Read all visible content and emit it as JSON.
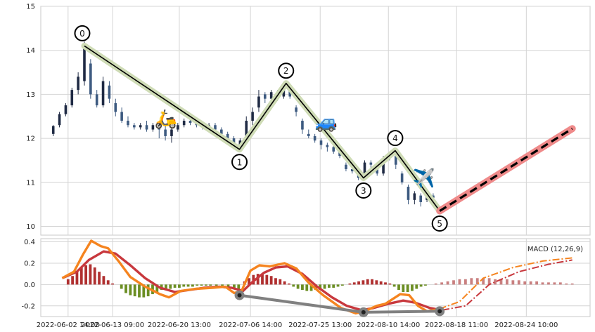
{
  "chart_data": [
    {
      "type": "candlestick",
      "panel": "price",
      "ylim": [
        9.8,
        15
      ],
      "y_ticks": [
        10,
        11,
        12,
        13,
        14,
        15
      ],
      "grid": true,
      "candles": [
        [
          -0.5,
          12.1,
          12.28,
          12.05,
          12.3
        ],
        [
          -0.29,
          12.3,
          12.55,
          12.25,
          12.6
        ],
        [
          -0.08,
          12.55,
          12.75,
          12.5,
          12.8
        ],
        [
          0.13,
          12.75,
          13.1,
          12.7,
          13.15
        ],
        [
          0.34,
          13.1,
          13.4,
          13.0,
          13.5
        ],
        [
          0.55,
          13.3,
          14.1,
          13.2,
          14.2
        ],
        [
          0.76,
          13.7,
          13.0,
          12.9,
          13.8
        ],
        [
          0.97,
          13.0,
          12.75,
          12.7,
          13.1
        ],
        [
          1.18,
          12.75,
          13.3,
          12.7,
          13.4
        ],
        [
          1.39,
          13.2,
          12.9,
          12.8,
          13.3
        ],
        [
          1.6,
          12.8,
          12.6,
          12.5,
          12.9
        ],
        [
          1.81,
          12.6,
          12.4,
          12.35,
          12.7
        ],
        [
          2.02,
          12.4,
          12.3,
          12.25,
          12.5
        ],
        [
          2.23,
          12.3,
          12.25,
          12.2,
          12.35
        ],
        [
          2.44,
          12.25,
          12.3,
          12.2,
          12.35
        ],
        [
          2.65,
          12.3,
          12.2,
          12.15,
          12.4
        ],
        [
          2.86,
          12.2,
          12.3,
          12.15,
          12.35
        ],
        [
          3.07,
          12.3,
          12.2,
          12.0,
          12.35
        ],
        [
          3.28,
          12.2,
          12.05,
          11.95,
          12.3
        ],
        [
          3.49,
          12.05,
          12.2,
          11.9,
          12.25
        ],
        [
          3.7,
          12.2,
          12.3,
          12.15,
          12.35
        ],
        [
          3.91,
          12.3,
          12.4,
          12.25,
          12.45
        ],
        [
          4.12,
          12.4,
          12.35,
          12.3,
          12.45
        ],
        [
          4.33,
          12.35,
          12.3,
          12.25,
          12.4
        ],
        [
          4.54,
          12.3,
          12.25,
          12.2,
          12.35
        ],
        [
          4.75,
          12.25,
          12.3,
          12.2,
          12.35
        ],
        [
          4.96,
          12.3,
          12.2,
          12.15,
          12.35
        ],
        [
          5.17,
          12.2,
          12.1,
          12.05,
          12.25
        ],
        [
          5.38,
          12.1,
          12.0,
          11.95,
          12.15
        ],
        [
          5.59,
          12.0,
          11.85,
          11.75,
          12.05
        ],
        [
          5.8,
          11.85,
          11.95,
          11.8,
          12.0
        ],
        [
          6.01,
          12.0,
          12.4,
          11.95,
          12.5
        ],
        [
          6.22,
          12.4,
          12.6,
          12.3,
          12.7
        ],
        [
          6.43,
          12.7,
          12.95,
          12.6,
          13.1
        ],
        [
          6.64,
          13.0,
          12.9,
          12.8,
          13.05
        ],
        [
          6.85,
          12.9,
          13.05,
          12.85,
          13.1
        ],
        [
          7.06,
          13.05,
          12.95,
          12.85,
          13.1
        ],
        [
          7.27,
          12.95,
          13.2,
          12.9,
          13.25
        ],
        [
          7.48,
          13.1,
          12.95,
          12.9,
          13.15
        ],
        [
          7.69,
          12.7,
          12.6,
          12.5,
          12.75
        ],
        [
          7.9,
          12.4,
          12.2,
          12.1,
          12.45
        ],
        [
          8.11,
          12.1,
          12.05,
          12.0,
          12.2
        ],
        [
          8.32,
          12.05,
          11.95,
          11.9,
          12.1
        ],
        [
          8.53,
          11.95,
          11.85,
          11.75,
          12.0
        ],
        [
          8.74,
          11.85,
          11.8,
          11.7,
          11.9
        ],
        [
          8.95,
          11.8,
          11.7,
          11.65,
          11.85
        ],
        [
          9.16,
          11.7,
          11.6,
          11.55,
          11.75
        ],
        [
          9.37,
          11.4,
          11.3,
          11.25,
          11.45
        ],
        [
          9.58,
          11.3,
          11.25,
          11.2,
          11.35
        ],
        [
          9.79,
          11.25,
          11.1,
          11.05,
          11.3
        ],
        [
          10.0,
          11.1,
          11.45,
          11.05,
          11.5
        ],
        [
          10.21,
          11.45,
          11.4,
          11.3,
          11.5
        ],
        [
          10.42,
          11.35,
          11.2,
          11.15,
          11.4
        ],
        [
          10.63,
          11.2,
          11.55,
          11.15,
          11.6
        ],
        [
          10.84,
          11.55,
          11.65,
          11.5,
          11.7
        ],
        [
          11.05,
          11.6,
          11.4,
          11.3,
          11.7
        ],
        [
          11.26,
          11.2,
          11.0,
          10.95,
          11.25
        ],
        [
          11.47,
          10.9,
          10.6,
          10.5,
          10.95
        ],
        [
          11.68,
          10.6,
          10.75,
          10.5,
          10.8
        ],
        [
          11.89,
          10.7,
          10.55,
          10.45,
          10.75
        ],
        [
          12.1,
          10.6,
          10.7,
          10.55,
          10.75
        ],
        [
          12.31,
          10.7,
          10.65,
          10.6,
          10.75
        ]
      ],
      "wave_points": [
        {
          "label": "0",
          "x": 0.55,
          "y": 14.1
        },
        {
          "label": "1",
          "x": 5.78,
          "y": 11.75
        },
        {
          "label": "2",
          "x": 7.35,
          "y": 13.25
        },
        {
          "label": "3",
          "x": 9.96,
          "y": 11.1
        },
        {
          "label": "4",
          "x": 11.03,
          "y": 11.72
        },
        {
          "label": "5",
          "x": 12.53,
          "y": 10.35
        }
      ],
      "projection": {
        "from": {
          "x": 12.53,
          "y": 10.35
        },
        "to": {
          "x": 17.0,
          "y": 12.22
        }
      },
      "emoji_markers": [
        {
          "symbol": "🛵",
          "x": 3.3,
          "y": 12.45
        },
        {
          "symbol": "🚙",
          "x": 8.7,
          "y": 12.38
        },
        {
          "symbol": "✈️",
          "x": 12.0,
          "y": 11.1
        }
      ]
    },
    {
      "type": "macd",
      "panel": "indicator",
      "ylim": [
        -0.3,
        0.43
      ],
      "y_ticks": [
        -0.2,
        0.0,
        0.2,
        0.4
      ],
      "x_ticks": [
        {
          "x": 0,
          "label": "2022-06-02 14:00"
        },
        {
          "x": 1.5,
          "label": "2022-06-13 09:00"
        },
        {
          "x": 3.75,
          "label": "2022-06-20 13:00"
        },
        {
          "x": 6.15,
          "label": "2022-07-06 14:00"
        },
        {
          "x": 8.5,
          "label": "2022-07-25 13:00"
        },
        {
          "x": 10.8,
          "label": "2022-08-10 14:00"
        },
        {
          "x": 13.1,
          "label": "2022-08-18 11:00"
        },
        {
          "x": 15.45,
          "label": "2022-08-24 10:00"
        }
      ],
      "xlim": [
        -0.92,
        17.6
      ],
      "legend_text": "MACD (12,26,9)",
      "legend_position": "top-right",
      "macd_line": [
        [
          -0.2,
          0.06
        ],
        [
          0.2,
          0.12
        ],
        [
          0.5,
          0.28
        ],
        [
          0.78,
          0.41
        ],
        [
          1.1,
          0.36
        ],
        [
          1.35,
          0.34
        ],
        [
          1.7,
          0.22
        ],
        [
          2.1,
          0.07
        ],
        [
          2.6,
          -0.02
        ],
        [
          3.1,
          -0.09
        ],
        [
          3.4,
          -0.12
        ],
        [
          3.8,
          -0.06
        ],
        [
          4.3,
          -0.04
        ],
        [
          4.9,
          -0.03
        ],
        [
          5.3,
          -0.02
        ],
        [
          5.6,
          -0.08
        ],
        [
          5.85,
          -0.06
        ],
        [
          6.15,
          0.13
        ],
        [
          6.45,
          0.18
        ],
        [
          6.8,
          0.17
        ],
        [
          7.3,
          0.2
        ],
        [
          7.7,
          0.15
        ],
        [
          8.1,
          0.02
        ],
        [
          8.6,
          -0.1
        ],
        [
          9.2,
          -0.22
        ],
        [
          9.7,
          -0.27
        ],
        [
          10.0,
          -0.25
        ],
        [
          10.4,
          -0.2
        ],
        [
          10.7,
          -0.18
        ],
        [
          11.2,
          -0.09
        ],
        [
          11.5,
          -0.1
        ],
        [
          11.8,
          -0.2
        ],
        [
          12.1,
          -0.25
        ],
        [
          12.5,
          -0.23
        ],
        [
          13.2,
          -0.16
        ],
        [
          14.0,
          0.06
        ],
        [
          15.0,
          0.16
        ],
        [
          16.0,
          0.22
        ],
        [
          17.0,
          0.25
        ]
      ],
      "signal_line": [
        [
          -0.2,
          0.06
        ],
        [
          0.3,
          0.12
        ],
        [
          0.7,
          0.23
        ],
        [
          1.2,
          0.31
        ],
        [
          1.6,
          0.29
        ],
        [
          2.1,
          0.18
        ],
        [
          2.6,
          0.06
        ],
        [
          3.1,
          -0.03
        ],
        [
          3.6,
          -0.07
        ],
        [
          4.1,
          -0.05
        ],
        [
          4.6,
          -0.03
        ],
        [
          5.1,
          -0.02
        ],
        [
          5.5,
          -0.03
        ],
        [
          5.9,
          -0.06
        ],
        [
          6.2,
          0.02
        ],
        [
          6.6,
          0.11
        ],
        [
          7.0,
          0.16
        ],
        [
          7.4,
          0.17
        ],
        [
          7.9,
          0.1
        ],
        [
          8.4,
          -0.02
        ],
        [
          8.9,
          -0.12
        ],
        [
          9.4,
          -0.2
        ],
        [
          9.9,
          -0.24
        ],
        [
          10.3,
          -0.22
        ],
        [
          10.8,
          -0.18
        ],
        [
          11.3,
          -0.15
        ],
        [
          11.7,
          -0.17
        ],
        [
          12.2,
          -0.22
        ],
        [
          12.6,
          -0.24
        ],
        [
          13.4,
          -0.2
        ],
        [
          14.2,
          0.0
        ],
        [
          15.2,
          0.12
        ],
        [
          16.2,
          0.19
        ],
        [
          17.0,
          0.23
        ]
      ],
      "projection_start_x": 12.8,
      "divergence_line": [
        [
          5.78,
          -0.1
        ],
        [
          9.96,
          -0.26
        ],
        [
          12.53,
          -0.25
        ]
      ],
      "histogram": [
        [
          0.0,
          0.05
        ],
        [
          0.15,
          0.08
        ],
        [
          0.3,
          0.12
        ],
        [
          0.45,
          0.16
        ],
        [
          0.6,
          0.18
        ],
        [
          0.75,
          0.19
        ],
        [
          0.9,
          0.16
        ],
        [
          1.05,
          0.12
        ],
        [
          1.2,
          0.08
        ],
        [
          1.35,
          0.04
        ],
        [
          1.5,
          0.01
        ],
        [
          1.8,
          -0.04
        ],
        [
          1.95,
          -0.08
        ],
        [
          2.1,
          -0.1
        ],
        [
          2.25,
          -0.11
        ],
        [
          2.4,
          -0.12
        ],
        [
          2.55,
          -0.12
        ],
        [
          2.7,
          -0.11
        ],
        [
          2.85,
          -0.09
        ],
        [
          3.0,
          -0.07
        ],
        [
          3.15,
          -0.05
        ],
        [
          3.3,
          -0.04
        ],
        [
          3.45,
          -0.04
        ],
        [
          3.6,
          -0.03
        ],
        [
          3.75,
          -0.03
        ],
        [
          3.9,
          -0.02
        ],
        [
          4.05,
          -0.02
        ],
        [
          4.2,
          -0.02
        ],
        [
          4.35,
          -0.01
        ],
        [
          4.5,
          -0.01
        ],
        [
          4.65,
          -0.01
        ],
        [
          4.8,
          -0.01
        ],
        [
          5.0,
          -0.01
        ],
        [
          5.2,
          -0.01
        ],
        [
          5.4,
          -0.02
        ],
        [
          5.6,
          -0.04
        ],
        [
          5.75,
          -0.04
        ],
        [
          5.95,
          0.03
        ],
        [
          6.1,
          0.06
        ],
        [
          6.25,
          0.09
        ],
        [
          6.4,
          0.1
        ],
        [
          6.55,
          0.1
        ],
        [
          6.7,
          0.09
        ],
        [
          6.85,
          0.08
        ],
        [
          7.0,
          0.06
        ],
        [
          7.15,
          0.05
        ],
        [
          7.3,
          0.03
        ],
        [
          7.45,
          0.01
        ],
        [
          7.6,
          -0.02
        ],
        [
          7.75,
          -0.04
        ],
        [
          7.9,
          -0.05
        ],
        [
          8.05,
          -0.06
        ],
        [
          8.2,
          -0.06
        ],
        [
          8.35,
          -0.05
        ],
        [
          8.5,
          -0.05
        ],
        [
          8.65,
          -0.04
        ],
        [
          8.8,
          -0.03
        ],
        [
          8.95,
          -0.03
        ],
        [
          9.1,
          -0.02
        ],
        [
          9.25,
          -0.01
        ],
        [
          9.5,
          0.01
        ],
        [
          9.65,
          0.02
        ],
        [
          9.8,
          0.03
        ],
        [
          9.95,
          0.04
        ],
        [
          10.1,
          0.05
        ],
        [
          10.25,
          0.05
        ],
        [
          10.4,
          0.04
        ],
        [
          10.55,
          0.03
        ],
        [
          10.7,
          0.02
        ],
        [
          10.85,
          0.01
        ],
        [
          11.0,
          -0.02
        ],
        [
          11.15,
          -0.05
        ],
        [
          11.3,
          -0.07
        ],
        [
          11.45,
          -0.07
        ],
        [
          11.6,
          -0.06
        ],
        [
          11.75,
          -0.04
        ],
        [
          11.9,
          -0.02
        ],
        [
          12.05,
          -0.01
        ],
        [
          12.4,
          0.01
        ],
        [
          12.6,
          0.02
        ],
        [
          12.8,
          0.03
        ],
        [
          13.0,
          0.04
        ],
        [
          13.2,
          0.05
        ],
        [
          13.4,
          0.05
        ],
        [
          13.6,
          0.06
        ],
        [
          13.8,
          0.06
        ],
        [
          14.0,
          0.06
        ],
        [
          14.2,
          0.06
        ],
        [
          14.4,
          0.05
        ],
        [
          14.6,
          0.05
        ],
        [
          14.8,
          0.05
        ],
        [
          15.0,
          0.04
        ],
        [
          15.2,
          0.04
        ],
        [
          15.4,
          0.03
        ],
        [
          15.6,
          0.03
        ],
        [
          15.8,
          0.03
        ],
        [
          16.0,
          0.02
        ],
        [
          16.2,
          0.02
        ],
        [
          16.4,
          0.02
        ],
        [
          16.6,
          0.02
        ],
        [
          16.8,
          0.01
        ],
        [
          17.0,
          0.01
        ]
      ]
    }
  ],
  "colors": {
    "candle_up": "#1f2a44",
    "candle_down": "#3d5a80",
    "wave_line": "#000000",
    "wave_band": "#cfdcb6",
    "projection_band": "#ef8a8a",
    "macd_line": "#f5841f",
    "signal_line": "#c8383d",
    "divergence_line": "#808080",
    "hist_pos": "#b03030",
    "hist_neg": "#6b8e23",
    "hist_proj": "#c98080",
    "grid": "#d4d4d4"
  }
}
